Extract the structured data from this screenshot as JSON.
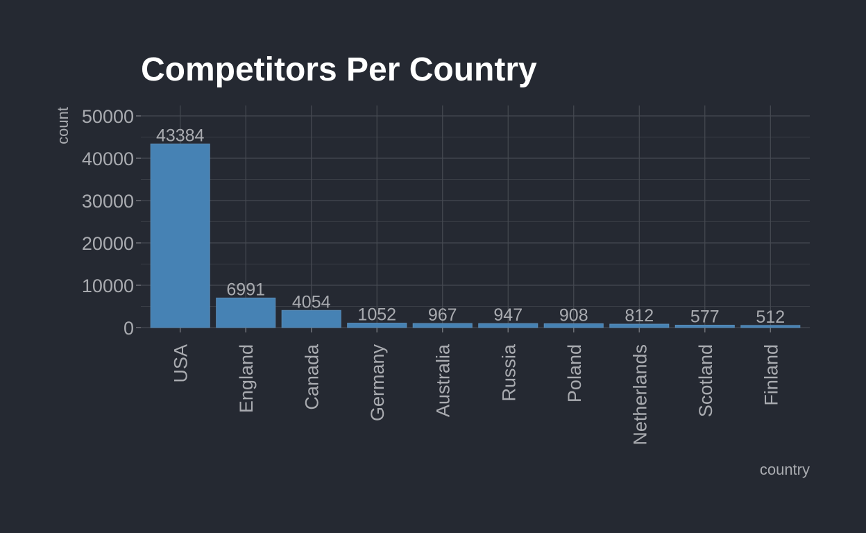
{
  "chart_data": {
    "type": "bar",
    "title": "Competitors Per Country",
    "xlabel": "country",
    "ylabel": "count",
    "categories": [
      "USA",
      "England",
      "Canada",
      "Germany",
      "Australia",
      "Russia",
      "Poland",
      "Netherlands",
      "Scotland",
      "Finland"
    ],
    "values": [
      43384,
      6991,
      4054,
      1052,
      967,
      947,
      908,
      812,
      577,
      512
    ],
    "data_labels": [
      "43384",
      "6991",
      "4054",
      "1052",
      "967",
      "947",
      "908",
      "812",
      "577",
      "512"
    ],
    "ylim": [
      0,
      52500
    ],
    "y_ticks": [
      0,
      10000,
      20000,
      30000,
      40000,
      50000
    ],
    "y_tick_labels": [
      "0",
      "10000",
      "20000",
      "30000",
      "40000",
      "50000"
    ],
    "grid": true,
    "legend": "none",
    "colors": {
      "background": "#252932",
      "bar": "#4682b4",
      "text": "#a9abb0",
      "title": "#ffffff"
    }
  }
}
